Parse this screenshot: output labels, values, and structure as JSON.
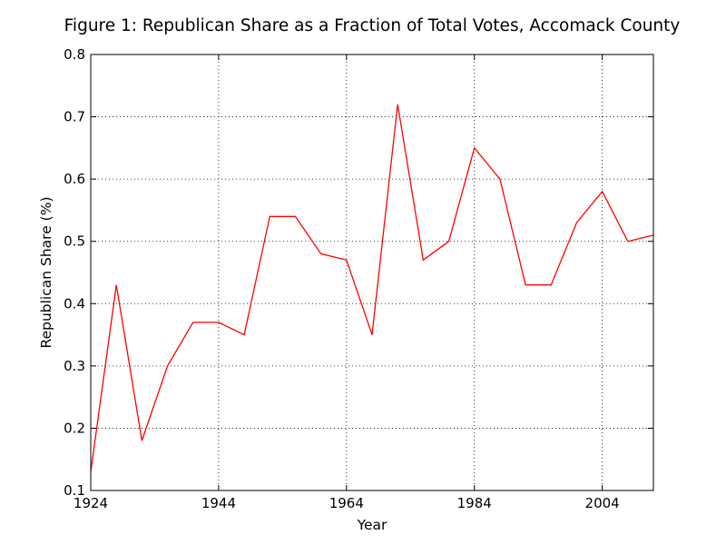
{
  "chart_data": {
    "type": "line",
    "title": "Figure 1: Republican Share as a Fraction of Total Votes, Accomack County",
    "xlabel": "Year",
    "ylabel": "Republican Share (%)",
    "xlim": [
      1924,
      2012
    ],
    "ylim": [
      0.1,
      0.8
    ],
    "xticks": [
      1924,
      1944,
      1964,
      1984,
      2004
    ],
    "yticks": [
      0.1,
      0.2,
      0.3,
      0.4,
      0.5,
      0.6,
      0.7,
      0.8
    ],
    "xtick_labels": [
      "1924",
      "1944",
      "1964",
      "1984",
      "2004"
    ],
    "ytick_labels": [
      "0.1",
      "0.2",
      "0.3",
      "0.4",
      "0.5",
      "0.6",
      "0.7",
      "0.8"
    ],
    "grid": true,
    "series": [
      {
        "color": "#ff0000",
        "x": [
          1924,
          1928,
          1932,
          1936,
          1940,
          1944,
          1948,
          1952,
          1956,
          1960,
          1964,
          1968,
          1972,
          1976,
          1980,
          1984,
          1988,
          1992,
          1996,
          2000,
          2004,
          2008,
          2012
        ],
        "y": [
          0.13,
          0.43,
          0.18,
          0.3,
          0.37,
          0.37,
          0.35,
          0.54,
          0.54,
          0.48,
          0.47,
          0.35,
          0.72,
          0.47,
          0.5,
          0.65,
          0.6,
          0.43,
          0.43,
          0.53,
          0.58,
          0.5,
          0.51
        ]
      }
    ]
  }
}
